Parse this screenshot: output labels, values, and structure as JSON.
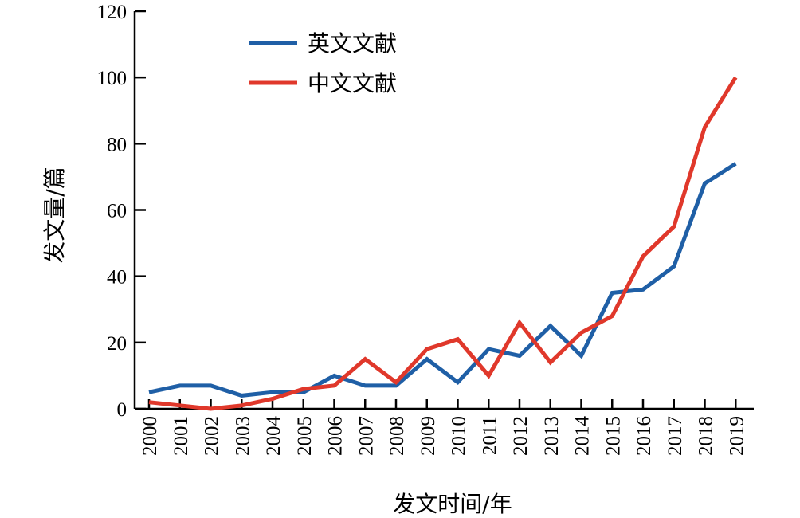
{
  "chart_data": {
    "type": "line",
    "title": "",
    "xlabel": "发文时间/年",
    "ylabel": "发文量/篇",
    "x": [
      "2000",
      "2001",
      "2002",
      "2003",
      "2004",
      "2005",
      "2006",
      "2007",
      "2008",
      "2009",
      "2010",
      "2011",
      "2012",
      "2013",
      "2014",
      "2015",
      "2016",
      "2017",
      "2018",
      "2019"
    ],
    "ylim": [
      0,
      120
    ],
    "yticks": [
      "0",
      "20",
      "40",
      "60",
      "80",
      "100",
      "120"
    ],
    "grid": false,
    "legend_position": "top-left",
    "series": [
      {
        "name": "英文文献",
        "color": "#1f5fa6",
        "values": [
          5,
          7,
          7,
          4,
          5,
          5,
          10,
          7,
          7,
          15,
          8,
          18,
          16,
          25,
          16,
          35,
          36,
          43,
          68,
          74
        ]
      },
      {
        "name": "中文文献",
        "color": "#e0382b",
        "values": [
          2,
          1,
          0,
          1,
          3,
          6,
          7,
          15,
          8,
          18,
          21,
          10,
          26,
          14,
          23,
          28,
          46,
          55,
          85,
          100
        ]
      }
    ]
  }
}
